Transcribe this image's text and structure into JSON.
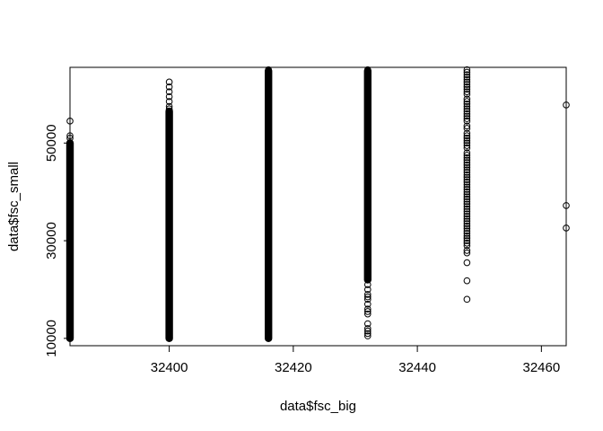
{
  "chart_data": {
    "type": "scatter",
    "title": "",
    "xlabel": "data$fsc_big",
    "ylabel": "data$fsc_small",
    "xlim": [
      32384,
      32464
    ],
    "ylim": [
      8500,
      65500
    ],
    "x_ticks": [
      32400,
      32420,
      32440,
      32460
    ],
    "x_tick_labels": [
      "32400",
      "32420",
      "32440",
      "32460"
    ],
    "y_ticks": [
      10000,
      30000,
      50000
    ],
    "y_tick_labels": [
      "10000",
      "30000",
      "50000"
    ],
    "grid": false,
    "legend": "none",
    "marker": "open-circle",
    "color": "#000000",
    "columns": [
      {
        "x": 32384,
        "dense_range": [
          10000,
          50000
        ],
        "points": [
          51500,
          51000,
          54500,
          49000,
          48500,
          48000,
          47000,
          12000,
          11000,
          10500,
          10200
        ]
      },
      {
        "x": 32400,
        "dense_range": [
          10000,
          56500
        ],
        "points": [
          62500,
          61500,
          60500,
          59500,
          58500,
          57500,
          57000,
          12000,
          11000,
          10400,
          10100
        ]
      },
      {
        "x": 32416,
        "dense_range": [
          10000,
          64800
        ],
        "points": [
          65000,
          64500,
          12000,
          11000,
          10400,
          10100
        ]
      },
      {
        "x": 32432,
        "dense_range": [
          22000,
          64800
        ],
        "points": [
          65000,
          21000,
          20000,
          19000,
          18500,
          18000,
          17000,
          16000,
          15500,
          15000,
          13000,
          12000,
          11500,
          11000,
          10500
        ]
      },
      {
        "x": 32448,
        "dense_range": null,
        "points": [
          65000,
          64500,
          64000,
          63500,
          63000,
          62500,
          62000,
          61500,
          61000,
          60500,
          60000,
          59000,
          58500,
          58000,
          57500,
          57000,
          56500,
          56000,
          55500,
          55000,
          54500,
          53500,
          53000,
          52000,
          51500,
          51000,
          50500,
          50000,
          49500,
          49000,
          48000,
          47500,
          47000,
          46500,
          46000,
          45500,
          45000,
          44500,
          44000,
          43500,
          43000,
          42500,
          42000,
          41500,
          41000,
          40500,
          40000,
          39500,
          39000,
          38500,
          38000,
          37500,
          37000,
          36500,
          36000,
          35500,
          35000,
          34500,
          34000,
          33500,
          33000,
          32500,
          32000,
          31500,
          31000,
          30500,
          30000,
          29500,
          29000,
          28000,
          27500,
          25500,
          21800,
          18000
        ]
      },
      {
        "x": 32464,
        "dense_range": null,
        "points": [
          57800,
          37200,
          32600
        ]
      }
    ]
  }
}
